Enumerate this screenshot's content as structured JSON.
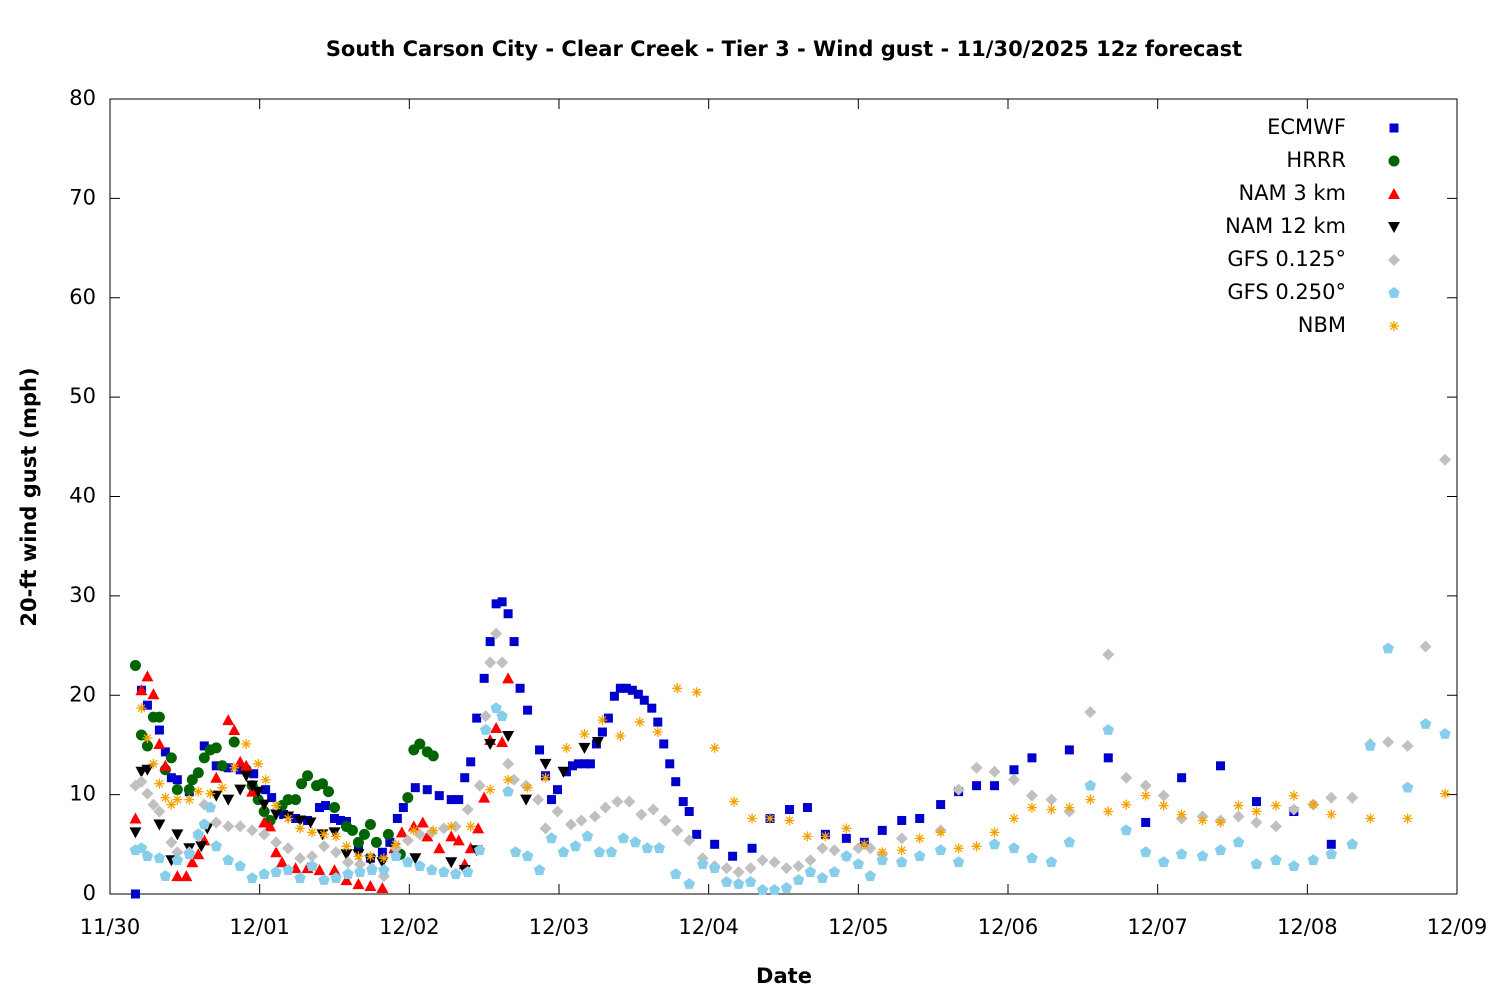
{
  "chart_data": {
    "type": "scatter",
    "title": "South Carson City - Clear Creek - Tier 3 - Wind gust - 11/30/2025 12z forecast",
    "x_label": "Date",
    "y_label": "20-ft wind gust (mph)",
    "xlim": [
      0,
      9
    ],
    "ylim": [
      0,
      80
    ],
    "xticks": [
      {
        "value": 0,
        "label": "11/30"
      },
      {
        "value": 1,
        "label": "12/01"
      },
      {
        "value": 2,
        "label": "12/02"
      },
      {
        "value": 3,
        "label": "12/03"
      },
      {
        "value": 4,
        "label": "12/04"
      },
      {
        "value": 5,
        "label": "12/05"
      },
      {
        "value": 6,
        "label": "12/06"
      },
      {
        "value": 7,
        "label": "12/07"
      },
      {
        "value": 8,
        "label": "12/08"
      },
      {
        "value": 9,
        "label": "12/09"
      }
    ],
    "yticks": [
      0,
      10,
      20,
      30,
      40,
      50,
      60,
      70,
      80
    ],
    "grid": false,
    "legend": "top-right",
    "series": [
      {
        "name": "ECMWF",
        "color": "#0000cc",
        "marker": "square",
        "x": [
          0.17,
          0.21,
          0.25,
          0.33,
          0.37,
          0.41,
          0.45,
          0.53,
          0.63,
          0.71,
          0.79,
          0.87,
          0.96,
          1.04,
          1.08,
          1.16,
          1.24,
          1.32,
          1.4,
          1.44,
          1.5,
          1.54,
          1.58,
          1.66,
          1.74,
          1.82,
          1.87,
          1.92,
          1.96,
          2.04,
          2.12,
          2.2,
          2.28,
          2.33,
          2.37,
          2.41,
          2.45,
          2.5,
          2.54,
          2.58,
          2.62,
          2.66,
          2.7,
          2.74,
          2.79,
          2.87,
          2.91,
          2.95,
          2.99,
          3.05,
          3.09,
          3.13,
          3.17,
          3.21,
          3.25,
          3.29,
          3.33,
          3.37,
          3.41,
          3.45,
          3.49,
          3.53,
          3.57,
          3.62,
          3.66,
          3.7,
          3.74,
          3.78,
          3.83,
          3.87,
          3.92,
          4.04,
          4.16,
          4.29,
          4.41,
          4.54,
          4.66,
          4.78,
          4.92,
          5.04,
          5.16,
          5.29,
          5.41,
          5.55,
          5.67,
          5.79,
          5.91,
          6.04,
          6.16,
          6.41,
          6.67,
          6.92,
          7.16,
          7.42,
          7.66,
          7.91,
          8.16
        ],
        "values": [
          0,
          20.5,
          19,
          16.5,
          14.3,
          11.7,
          11.5,
          10.3,
          14.9,
          12.9,
          12.7,
          12.5,
          12.1,
          10.5,
          9.7,
          8,
          7.6,
          7.4,
          8.7,
          8.9,
          7.6,
          7.4,
          7.3,
          4.8,
          3.6,
          4.2,
          5.2,
          7.6,
          8.7,
          10.7,
          10.5,
          9.9,
          9.5,
          9.5,
          11.7,
          13.3,
          17.7,
          21.7,
          25.4,
          29.2,
          29.4,
          28.2,
          25.4,
          20.7,
          18.5,
          14.5,
          11.9,
          9.5,
          10.5,
          12.3,
          12.9,
          13.1,
          13.1,
          13.1,
          15.1,
          16.3,
          17.7,
          19.9,
          20.7,
          20.7,
          20.5,
          20.1,
          19.5,
          18.7,
          17.3,
          15.1,
          13.1,
          11.3,
          9.3,
          8.3,
          6,
          5,
          3.8,
          4.6,
          7.6,
          8.5,
          8.7,
          6,
          5.6,
          5.2,
          6.4,
          7.4,
          7.6,
          9,
          10.3,
          10.9,
          10.9,
          12.5,
          13.7,
          14.5,
          13.7,
          7.2,
          11.7,
          12.9,
          9.3,
          8.3,
          5
        ]
      },
      {
        "name": "HRRR",
        "color": "#006400",
        "marker": "circle",
        "x": [
          0.17,
          0.21,
          0.25,
          0.29,
          0.33,
          0.37,
          0.41,
          0.45,
          0.53,
          0.55,
          0.59,
          0.63,
          0.67,
          0.71,
          0.75,
          0.83,
          0.91,
          0.95,
          0.99,
          1.03,
          1.07,
          1.15,
          1.19,
          1.24,
          1.28,
          1.32,
          1.38,
          1.42,
          1.46,
          1.5,
          1.58,
          1.62,
          1.66,
          1.7,
          1.74,
          1.78,
          1.86,
          1.94,
          1.99,
          2.03,
          2.07,
          2.12,
          2.16
        ],
        "values": [
          23,
          16,
          14.9,
          17.8,
          17.8,
          12.5,
          13.7,
          10.5,
          10.5,
          11.5,
          12.2,
          13.7,
          14.5,
          14.7,
          12.9,
          15.3,
          12.5,
          10.9,
          9.5,
          8.3,
          7.4,
          8.9,
          9.5,
          9.5,
          11.1,
          11.9,
          10.9,
          11.1,
          10.3,
          8.7,
          6.8,
          6.4,
          5.2,
          6,
          7,
          5.2,
          6,
          4,
          9.7,
          14.5,
          15.1,
          14.3,
          13.9
        ]
      },
      {
        "name": "NAM 3 km",
        "color": "#ff0000",
        "marker": "triangle-up",
        "x": [
          0.17,
          0.21,
          0.25,
          0.29,
          0.33,
          0.37,
          0.45,
          0.51,
          0.55,
          0.59,
          0.63,
          0.71,
          0.79,
          0.83,
          0.87,
          0.91,
          0.95,
          1.03,
          1.07,
          1.11,
          1.15,
          1.24,
          1.32,
          1.4,
          1.5,
          1.58,
          1.66,
          1.74,
          1.82,
          1.9,
          1.95,
          2.03,
          2.09,
          2.12,
          2.2,
          2.28,
          2.33,
          2.37,
          2.41,
          2.46,
          2.5,
          2.54,
          2.58,
          2.62,
          2.66
        ],
        "values": [
          7.6,
          20.5,
          21.9,
          20.1,
          15.1,
          12.9,
          1.8,
          1.8,
          3.2,
          4,
          5.4,
          11.7,
          17.5,
          16.5,
          13.3,
          12.9,
          10.3,
          7.2,
          6.8,
          4.2,
          3.2,
          2.6,
          2.6,
          2.4,
          2.4,
          1.4,
          1,
          0.8,
          0.6,
          4.6,
          6.2,
          6.8,
          7.2,
          5.8,
          4.6,
          5.8,
          5.4,
          3,
          4.6,
          6.6,
          9.7,
          15.5,
          16.7,
          15.3,
          21.7
        ]
      },
      {
        "name": "NAM 12 km",
        "color": "#000000",
        "marker": "triangle-down",
        "x": [
          0.17,
          0.21,
          0.25,
          0.33,
          0.41,
          0.45,
          0.53,
          0.61,
          0.65,
          0.71,
          0.79,
          0.87,
          0.91,
          0.95,
          0.99,
          1.03,
          1.11,
          1.19,
          1.27,
          1.34,
          1.42,
          1.5,
          1.58,
          1.66,
          1.74,
          1.82,
          1.9,
          2.04,
          2.28,
          2.37,
          2.45,
          2.54,
          2.66,
          2.78,
          2.91,
          3.03,
          3.17,
          3.26
        ],
        "values": [
          6.2,
          12.3,
          12.5,
          7,
          3.4,
          6,
          4.6,
          4.8,
          6.6,
          9.9,
          9.5,
          10.5,
          11.9,
          10.9,
          10.3,
          9,
          8,
          7.8,
          7.4,
          7.2,
          6,
          6.2,
          4,
          4,
          3.4,
          3.2,
          4.6,
          3.6,
          3.2,
          2.4,
          4.4,
          15.1,
          15.9,
          9.5,
          13.1,
          12.3,
          14.7,
          15.3
        ]
      },
      {
        "name": "GFS 0.125°",
        "color": "#c0c0c0",
        "marker": "diamond",
        "x": [
          0.17,
          0.21,
          0.25,
          0.29,
          0.33,
          0.41,
          0.45,
          0.53,
          0.59,
          0.63,
          0.71,
          0.79,
          0.87,
          0.95,
          1.03,
          1.11,
          1.19,
          1.27,
          1.35,
          1.43,
          1.51,
          1.59,
          1.67,
          1.75,
          1.83,
          1.91,
          1.99,
          2.07,
          2.15,
          2.23,
          2.31,
          2.39,
          2.47,
          2.51,
          2.54,
          2.58,
          2.62,
          2.66,
          2.7,
          2.78,
          2.86,
          2.91,
          2.99,
          3.08,
          3.15,
          3.24,
          3.31,
          3.39,
          3.47,
          3.55,
          3.63,
          3.71,
          3.79,
          3.87,
          3.96,
          4.04,
          4.12,
          4.2,
          4.28,
          4.36,
          4.44,
          4.52,
          4.6,
          4.68,
          4.76,
          4.84,
          4.92,
          5.0,
          5.08,
          5.16,
          5.29,
          5.55,
          5.67,
          5.79,
          5.91,
          6.04,
          6.16,
          6.29,
          6.41,
          6.55,
          6.67,
          6.79,
          6.92,
          7.04,
          7.16,
          7.3,
          7.42,
          7.54,
          7.66,
          7.79,
          7.91,
          8.04,
          8.16,
          8.3,
          8.42,
          8.54,
          8.67,
          8.79,
          8.92
        ],
        "values": [
          10.9,
          11.3,
          10.1,
          9,
          8.3,
          5.2,
          4.2,
          4.2,
          5.8,
          9,
          7.2,
          6.8,
          6.8,
          6.4,
          6,
          5.2,
          4.6,
          3.6,
          3.8,
          4.8,
          4.2,
          3.2,
          3,
          2.6,
          1.8,
          4.6,
          5.4,
          6,
          6.2,
          6.6,
          6.8,
          8.5,
          10.9,
          17.9,
          23.3,
          26.2,
          23.3,
          13.1,
          11.5,
          10.9,
          9.5,
          6.6,
          8.3,
          7,
          7.4,
          7.8,
          8.7,
          9.3,
          9.3,
          8,
          8.5,
          7.4,
          6.4,
          5.4,
          3.6,
          2.8,
          2.6,
          2.2,
          2.6,
          3.4,
          3.2,
          2.6,
          2.8,
          3.4,
          4.6,
          4.4,
          3.8,
          4.6,
          4.6,
          4,
          5.6,
          6.4,
          10.5,
          12.7,
          12.3,
          11.5,
          9.9,
          9.5,
          8.3,
          18.3,
          24.1,
          11.7,
          10.9,
          9.9,
          7.6,
          7.8,
          7.4,
          7.8,
          7.2,
          6.8,
          8.5,
          9,
          9.7,
          9.7,
          15.1,
          15.3,
          14.9,
          24.9,
          43.7
        ]
      },
      {
        "name": "GFS 0.250°",
        "color": "#87ceeb",
        "marker": "pentagon",
        "x": [
          0.17,
          0.21,
          0.25,
          0.33,
          0.37,
          0.45,
          0.53,
          0.59,
          0.63,
          0.67,
          0.71,
          0.79,
          0.87,
          0.95,
          1.03,
          1.11,
          1.19,
          1.27,
          1.35,
          1.43,
          1.51,
          1.59,
          1.67,
          1.75,
          1.83,
          1.91,
          1.99,
          2.07,
          2.15,
          2.23,
          2.31,
          2.39,
          2.47,
          2.51,
          2.58,
          2.62,
          2.66,
          2.71,
          2.79,
          2.87,
          2.95,
          3.03,
          3.11,
          3.19,
          3.27,
          3.35,
          3.43,
          3.51,
          3.59,
          3.67,
          3.78,
          3.87,
          3.96,
          4.04,
          4.12,
          4.2,
          4.28,
          4.36,
          4.44,
          4.52,
          4.6,
          4.68,
          4.76,
          4.84,
          4.92,
          5.0,
          5.08,
          5.16,
          5.29,
          5.41,
          5.55,
          5.67,
          5.91,
          6.04,
          6.16,
          6.29,
          6.41,
          6.55,
          6.67,
          6.79,
          6.92,
          7.04,
          7.16,
          7.3,
          7.42,
          7.54,
          7.66,
          7.79,
          7.91,
          8.04,
          8.16,
          8.3,
          8.42,
          8.54,
          8.67,
          8.79,
          8.92
        ],
        "values": [
          4.4,
          4.6,
          3.8,
          3.6,
          1.8,
          3.4,
          4,
          6,
          7,
          8.7,
          4.8,
          3.4,
          2.8,
          1.6,
          2,
          2.2,
          2.4,
          1.6,
          2.8,
          1.4,
          1.6,
          2,
          2.2,
          2.4,
          2.4,
          3.8,
          3.2,
          2.8,
          2.4,
          2.2,
          2,
          2.2,
          4.4,
          16.5,
          18.7,
          17.9,
          10.3,
          4.2,
          3.8,
          2.4,
          5.6,
          4.2,
          4.8,
          5.8,
          4.2,
          4.2,
          5.6,
          5.2,
          4.6,
          4.6,
          2,
          1,
          3,
          2.6,
          1.2,
          1,
          1.2,
          0.4,
          0.4,
          0.6,
          1.4,
          2.2,
          1.6,
          2.2,
          3.8,
          3,
          1.8,
          3.4,
          3.2,
          3.8,
          4.4,
          3.2,
          5,
          4.6,
          3.6,
          3.2,
          5.2,
          10.9,
          16.5,
          6.4,
          4.2,
          3.2,
          4,
          3.8,
          4.4,
          5.2,
          3,
          3.4,
          2.8,
          3.4,
          4,
          5,
          14.9,
          24.7,
          10.7,
          17.1,
          16.1
        ]
      },
      {
        "name": "NBM",
        "color": "#f4a300",
        "marker": "asterisk",
        "x": [
          0.21,
          0.25,
          0.29,
          0.33,
          0.37,
          0.41,
          0.45,
          0.53,
          0.59,
          0.67,
          0.75,
          0.83,
          0.91,
          0.99,
          1.04,
          1.11,
          1.19,
          1.27,
          1.35,
          1.43,
          1.51,
          1.58,
          1.66,
          1.74,
          1.83,
          1.91,
          2.03,
          2.16,
          2.28,
          2.41,
          2.54,
          2.66,
          2.79,
          2.91,
          3.05,
          3.17,
          3.29,
          3.41,
          3.54,
          3.66,
          3.79,
          3.92,
          4.04,
          4.17,
          4.29,
          4.41,
          4.54,
          4.66,
          4.78,
          4.92,
          5.04,
          5.16,
          5.29,
          5.41,
          5.55,
          5.67,
          5.79,
          5.91,
          6.04,
          6.16,
          6.29,
          6.41,
          6.55,
          6.67,
          6.79,
          6.92,
          7.04,
          7.16,
          7.3,
          7.42,
          7.54,
          7.66,
          7.79,
          7.91,
          8.04,
          8.16,
          8.42,
          8.67,
          8.92
        ],
        "values": [
          18.7,
          15.7,
          13.1,
          11.1,
          9.7,
          9,
          9.5,
          9.5,
          10.3,
          10.1,
          10.7,
          12.7,
          15.1,
          13.1,
          11.5,
          8.9,
          7.6,
          6.6,
          6.2,
          6,
          5.8,
          4.8,
          3.8,
          3.8,
          3.6,
          5,
          6.4,
          6.4,
          6.8,
          6.8,
          10.5,
          11.5,
          10.7,
          11.7,
          14.7,
          16.1,
          17.5,
          15.9,
          17.3,
          16.3,
          20.7,
          20.3,
          14.7,
          9.3,
          7.6,
          7.6,
          7.4,
          5.8,
          5.8,
          6.6,
          5,
          4.2,
          4.4,
          5.6,
          6.2,
          4.6,
          4.8,
          6.2,
          7.6,
          8.7,
          8.5,
          8.7,
          9.5,
          8.3,
          9,
          9.9,
          8.9,
          8,
          7.4,
          7.2,
          8.9,
          8.3,
          8.9,
          9.9,
          9,
          8,
          7.6,
          7.6,
          10.1
        ]
      }
    ]
  }
}
